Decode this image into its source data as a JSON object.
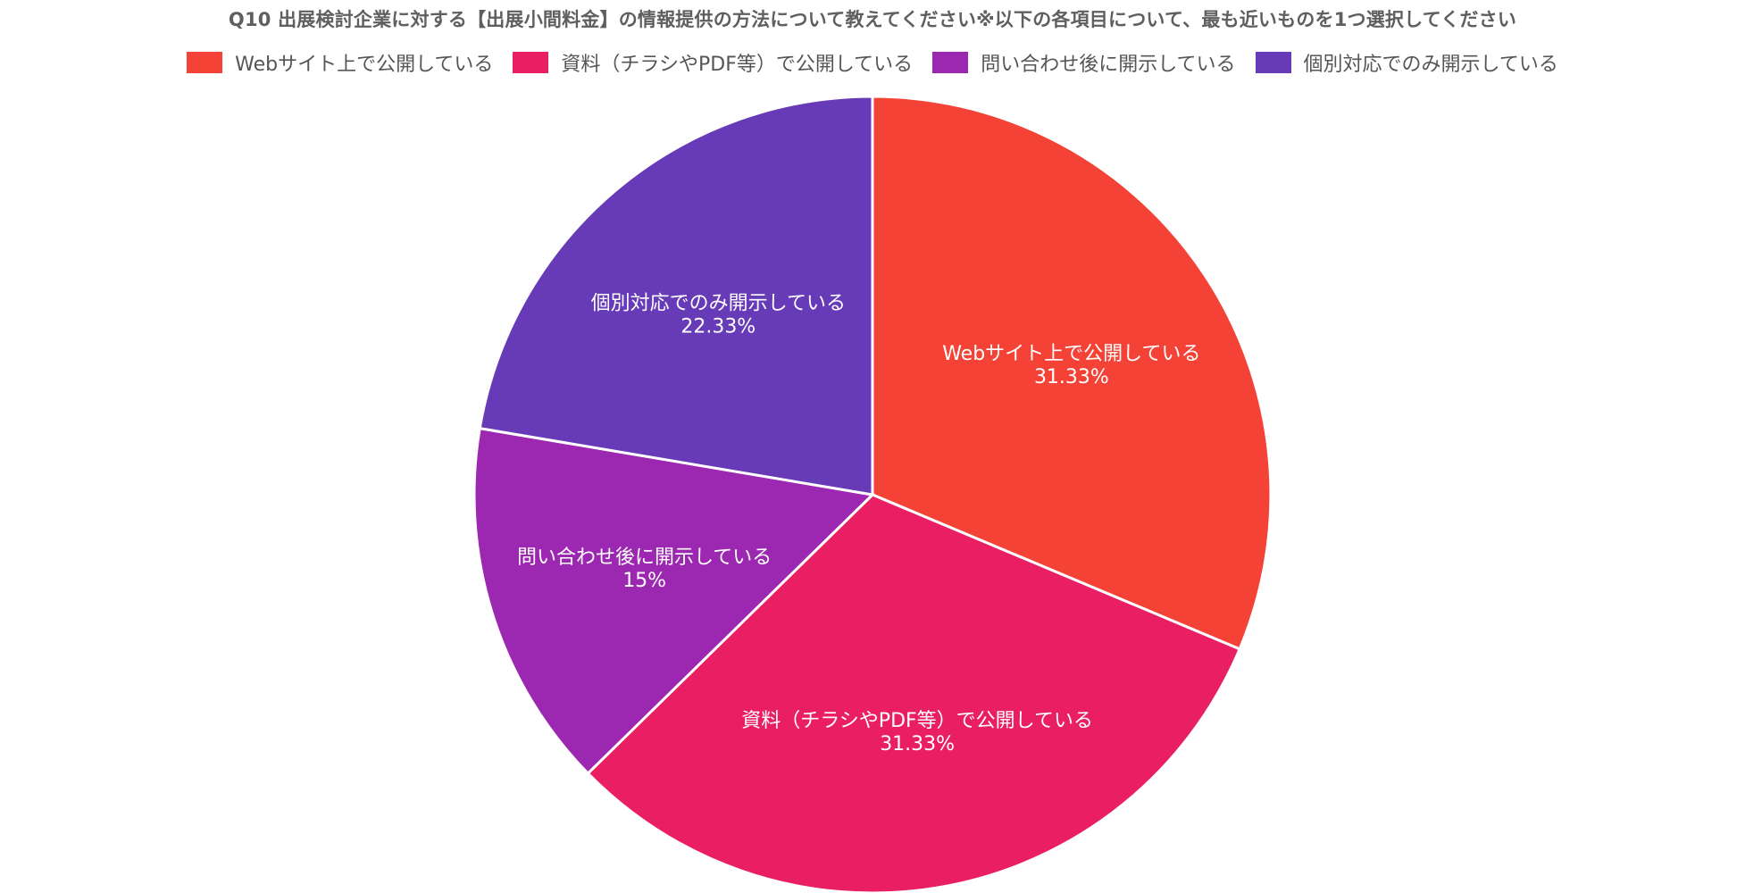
{
  "chart_data": {
    "type": "pie",
    "title": "Q10 出展検討企業に対する【出展小間料金】の情報提供の方法について教えてください※以下の各項目について、最も近いものを1つ選択してください",
    "legend_position": "top",
    "slices": [
      {
        "label": "Webサイト上で公開している",
        "value": 31.33,
        "display": "31.33%",
        "color": "#f44336"
      },
      {
        "label": "資料（チラシやPDF等）で公開している",
        "value": 31.33,
        "display": "31.33%",
        "color": "#e91e63"
      },
      {
        "label": "問い合わせ後に開示している",
        "value": 15,
        "display": "15%",
        "color": "#9c27b0"
      },
      {
        "label": "個別対応でのみ開示している",
        "value": 22.33,
        "display": "22.33%",
        "color": "#673ab7"
      }
    ]
  }
}
